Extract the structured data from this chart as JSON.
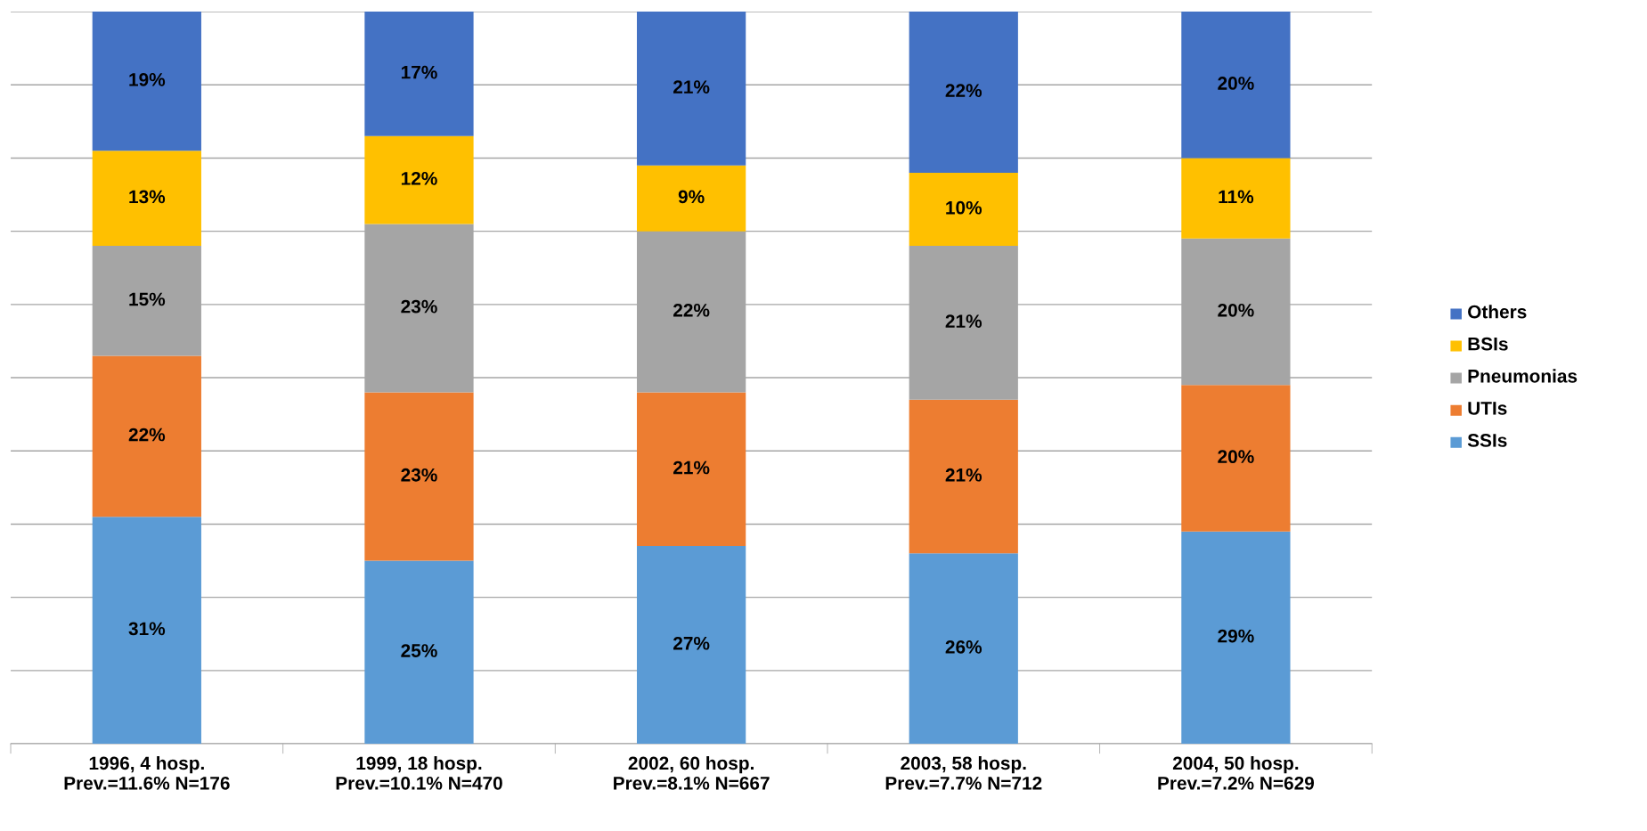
{
  "chart_data": {
    "type": "bar",
    "stacked": true,
    "categories": [
      "1996, 4 hosp.\nPrev.=11.6% N=176",
      "1999, 18 hosp.\nPrev.=10.1% N=470",
      "2002, 60 hosp.\nPrev.=8.1% N=667",
      "2003, 58 hosp.\nPrev.=7.7% N=712",
      "2004, 50 hosp.\nPrev.=7.2% N=629"
    ],
    "series": [
      {
        "name": "SSIs",
        "color": "#5b9bd5",
        "values": [
          31,
          25,
          27,
          26,
          29
        ],
        "value_labels": [
          "31%",
          "25%",
          "27%",
          "26%",
          "29%"
        ]
      },
      {
        "name": "UTIs",
        "color": "#ed7d31",
        "values": [
          22,
          23,
          21,
          21,
          20
        ],
        "value_labels": [
          "22%",
          "23%",
          "21%",
          "21%",
          "20%"
        ]
      },
      {
        "name": "Pneumonias",
        "color": "#a5a5a5",
        "values": [
          15,
          23,
          22,
          21,
          20
        ],
        "value_labels": [
          "15%",
          "23%",
          "22%",
          "21%",
          "20%"
        ]
      },
      {
        "name": "BSIs",
        "color": "#ffc000",
        "values": [
          13,
          12,
          9,
          10,
          11
        ],
        "value_labels": [
          "13%",
          "12%",
          "9%",
          "10%",
          "11%"
        ]
      },
      {
        "name": "Others",
        "color": "#4472c4",
        "values": [
          19,
          17,
          21,
          22,
          20
        ],
        "value_labels": [
          "19%",
          "17%",
          "21%",
          "22%",
          "20%"
        ]
      }
    ],
    "ylim": [
      0,
      100
    ],
    "yticks": [
      {
        "value": 0,
        "label": null
      },
      {
        "value": 10,
        "label": null
      },
      {
        "value": 20,
        "label": null
      },
      {
        "value": 30,
        "label": null
      },
      {
        "value": 40,
        "label": null
      },
      {
        "value": 50,
        "label": null
      },
      {
        "value": 60,
        "label": null
      },
      {
        "value": 70,
        "label": null
      },
      {
        "value": 80,
        "label": null
      },
      {
        "value": 90,
        "label": null
      },
      {
        "value": 100,
        "label": null
      }
    ],
    "tick_labels": "x",
    "grid": "y",
    "legend": "right"
  }
}
